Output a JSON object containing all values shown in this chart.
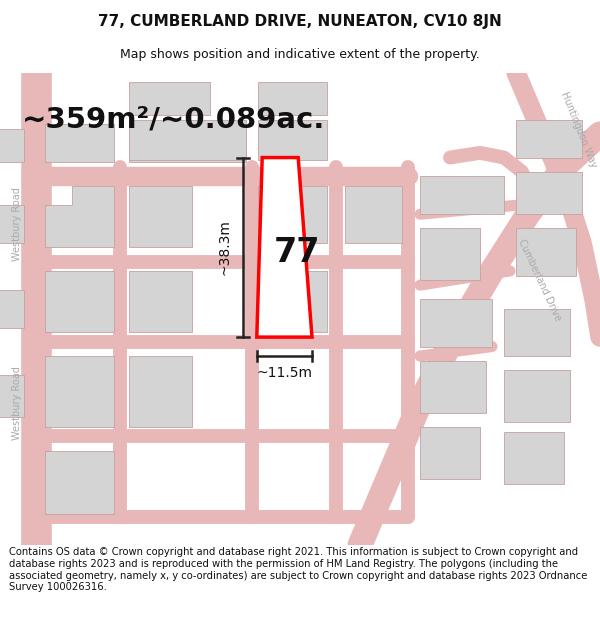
{
  "title": "77, CUMBERLAND DRIVE, NUNEATON, CV10 8JN",
  "subtitle": "Map shows position and indicative extent of the property.",
  "area_text": "~359m²/~0.089ac.",
  "dim_height": "~38.3m",
  "dim_width": "~11.5m",
  "label_77": "77",
  "footer": "Contains OS data © Crown copyright and database right 2021. This information is subject to Crown copyright and database rights 2023 and is reproduced with the permission of HM Land Registry. The polygons (including the associated geometry, namely x, y co-ordinates) are subject to Crown copyright and database rights 2023 Ordnance Survey 100026316.",
  "map_bg": "#f7f5f5",
  "road_color": "#e8b8b8",
  "building_color": "#d4d4d4",
  "building_edge": "#c8a0a0",
  "highlight_color": "#ff0000",
  "dim_color": "#222222",
  "text_color": "#111111",
  "road_label_color": "#aaaaaa",
  "title_fontsize": 11,
  "subtitle_fontsize": 9,
  "area_fontsize": 21,
  "label_fontsize": 24,
  "dim_fontsize": 10,
  "footer_fontsize": 7.2,
  "road_label_fontsize": 7
}
